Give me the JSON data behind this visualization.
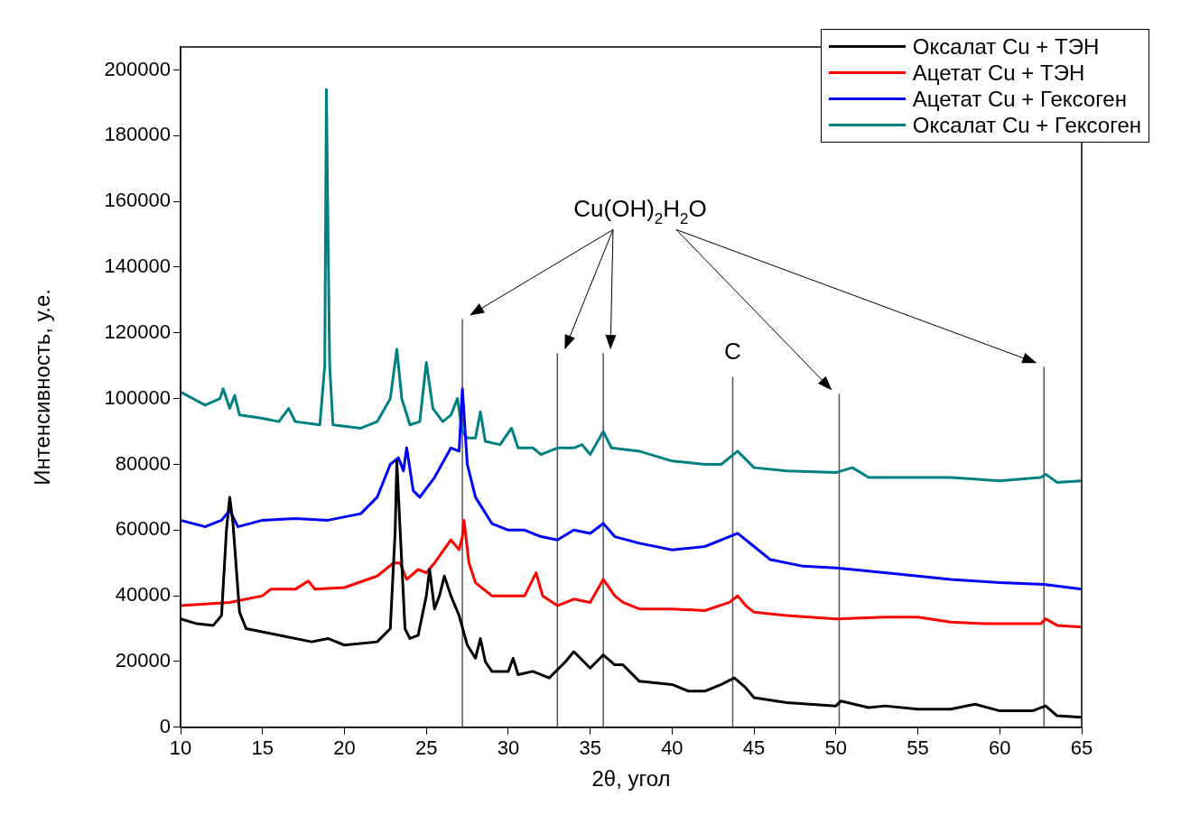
{
  "chart_data": {
    "type": "line",
    "xlabel": "2θ, угол",
    "ylabel": "Интенсивность, у.е.",
    "xlim": [
      10,
      65
    ],
    "xticks": [
      10,
      15,
      20,
      25,
      30,
      35,
      40,
      45,
      50,
      55,
      60,
      65
    ],
    "ylim": [
      0,
      207000
    ],
    "yticks": [
      0,
      20000,
      40000,
      60000,
      80000,
      100000,
      120000,
      140000,
      160000,
      180000,
      200000
    ],
    "grid": false,
    "legend": "top right",
    "marker": "none",
    "line_style": "solid",
    "series": [
      {
        "name": "Оксалат Cu + ТЭН",
        "color": "#000000",
        "x": [
          10,
          11,
          12,
          12.5,
          12.8,
          13,
          13.2,
          13.6,
          14,
          16,
          18,
          19,
          20,
          22,
          22.8,
          23.1,
          23.2,
          23.4,
          23.7,
          24,
          24.5,
          25,
          25.2,
          25.5,
          25.8,
          26.1,
          26.5,
          27,
          27.5,
          28,
          28.3,
          28.6,
          29,
          30,
          30.3,
          30.6,
          31.5,
          32.5,
          33.5,
          34,
          35,
          35.8,
          36.5,
          37,
          38,
          40,
          41,
          42,
          43,
          43.8,
          44.5,
          45,
          47,
          50,
          50.3,
          52,
          53,
          55,
          57,
          58.5,
          60,
          62,
          62.8,
          63.5,
          65
        ],
        "values": [
          33000,
          31500,
          31000,
          34000,
          60000,
          70000,
          62000,
          35000,
          30000,
          28000,
          26000,
          27000,
          25000,
          26000,
          30000,
          60000,
          81000,
          60000,
          30000,
          27000,
          28000,
          40000,
          48000,
          36000,
          40000,
          46000,
          40000,
          34000,
          25000,
          21000,
          27000,
          20000,
          17000,
          17000,
          21000,
          16000,
          17000,
          15000,
          20000,
          23000,
          18000,
          22000,
          19000,
          19000,
          14000,
          13000,
          11000,
          11000,
          13000,
          15000,
          12000,
          9000,
          7500,
          6500,
          8000,
          6000,
          6500,
          5500,
          5500,
          7000,
          5000,
          5000,
          6500,
          3500,
          3000
        ]
      },
      {
        "name": "Ацетат Cu + ТЭН",
        "color": "#ff0000",
        "x": [
          10,
          13,
          15,
          15.5,
          17,
          17.8,
          18.2,
          20,
          22,
          23,
          23.4,
          23.8,
          24.5,
          25,
          25.5,
          26.5,
          27,
          27.2,
          27.3,
          27.6,
          28,
          29,
          30,
          31,
          31.7,
          32.1,
          33,
          34,
          35,
          35.8,
          36.5,
          37,
          38,
          40,
          42,
          43.5,
          44,
          44.5,
          45,
          47,
          50,
          53,
          55,
          57,
          59,
          62.5,
          62.8,
          63.5,
          65
        ],
        "values": [
          37000,
          38000,
          40000,
          42000,
          42000,
          44500,
          42000,
          42500,
          46000,
          50000,
          50000,
          45000,
          48000,
          47000,
          50000,
          57000,
          54000,
          58000,
          63000,
          50000,
          44000,
          40000,
          40000,
          40000,
          47000,
          40000,
          37000,
          39000,
          38000,
          45000,
          40000,
          38000,
          36000,
          36000,
          35500,
          38000,
          40000,
          37000,
          35000,
          34000,
          33000,
          33500,
          33500,
          32000,
          31500,
          31500,
          33000,
          31000,
          30500
        ]
      },
      {
        "name": "Ацетат Cu + Гексоген",
        "color": "#0000ff",
        "x": [
          10,
          11.5,
          12.5,
          13,
          13.5,
          15,
          17,
          19,
          21,
          22,
          22.8,
          23.3,
          23.6,
          23.8,
          24.2,
          24.6,
          25.5,
          26.5,
          27,
          27.2,
          27.5,
          28,
          29,
          30,
          31,
          32,
          33,
          34,
          35,
          35.8,
          36.5,
          38,
          40,
          42,
          43.5,
          44,
          45,
          46,
          48,
          50,
          52,
          55,
          57,
          60,
          62.7,
          65
        ],
        "values": [
          63000,
          61000,
          63000,
          66000,
          61000,
          63000,
          63500,
          63000,
          65000,
          70000,
          80000,
          82000,
          78000,
          85000,
          72000,
          70000,
          76000,
          85000,
          84000,
          103000,
          80000,
          70000,
          62000,
          60000,
          60000,
          58000,
          57000,
          60000,
          59000,
          62000,
          58000,
          56000,
          54000,
          55000,
          58000,
          59000,
          55000,
          51000,
          49000,
          48500,
          47500,
          46000,
          45000,
          44000,
          43500,
          42000
        ]
      },
      {
        "name": "Оксалат Cu + Гексоген",
        "color": "#008080",
        "x": [
          10,
          11.5,
          12.4,
          12.6,
          13,
          13.3,
          13.6,
          15,
          16,
          16.6,
          17,
          18.5,
          18.8,
          18.9,
          19,
          19.1,
          19.3,
          21,
          22,
          22.8,
          23.2,
          23.5,
          24,
          24.6,
          25,
          25.4,
          26,
          26.5,
          26.9,
          27.2,
          27.5,
          28,
          28.3,
          28.6,
          29.5,
          30.2,
          30.6,
          31.5,
          32,
          33,
          34,
          34.5,
          35,
          35.8,
          36.3,
          38,
          40,
          42,
          43,
          44,
          45,
          47,
          50,
          51,
          52,
          55,
          57,
          60,
          62.5,
          62.8,
          63.5,
          65
        ],
        "values": [
          102000,
          98000,
          100000,
          103000,
          97000,
          101000,
          95000,
          94000,
          93000,
          97000,
          93000,
          92000,
          110000,
          194000,
          150000,
          110000,
          92000,
          91000,
          93000,
          100000,
          115000,
          100000,
          92000,
          93000,
          111000,
          97000,
          93000,
          95000,
          100000,
          90000,
          88000,
          88000,
          96000,
          87000,
          86000,
          91000,
          85000,
          85000,
          83000,
          85000,
          85000,
          86000,
          83000,
          90000,
          85000,
          84000,
          81000,
          80000,
          80000,
          84000,
          79000,
          78000,
          77500,
          79000,
          76000,
          76000,
          76000,
          75000,
          76000,
          77000,
          74500,
          75000
        ]
      }
    ],
    "ref_lines": [
      {
        "axis": "x",
        "value": 27.2,
        "color": "#555555"
      },
      {
        "axis": "x",
        "value": 33,
        "color": "#555555"
      },
      {
        "axis": "x",
        "value": 35.8,
        "color": "#555555"
      },
      {
        "axis": "x",
        "value": 43.7,
        "color": "#555555",
        "label": "C"
      },
      {
        "axis": "x",
        "value": 50.2,
        "color": "#555555"
      },
      {
        "axis": "x",
        "value": 62.7,
        "color": "#555555"
      }
    ],
    "annotations": [
      "Cu(OH)$_{2}$H$_{2}$O"
    ]
  }
}
